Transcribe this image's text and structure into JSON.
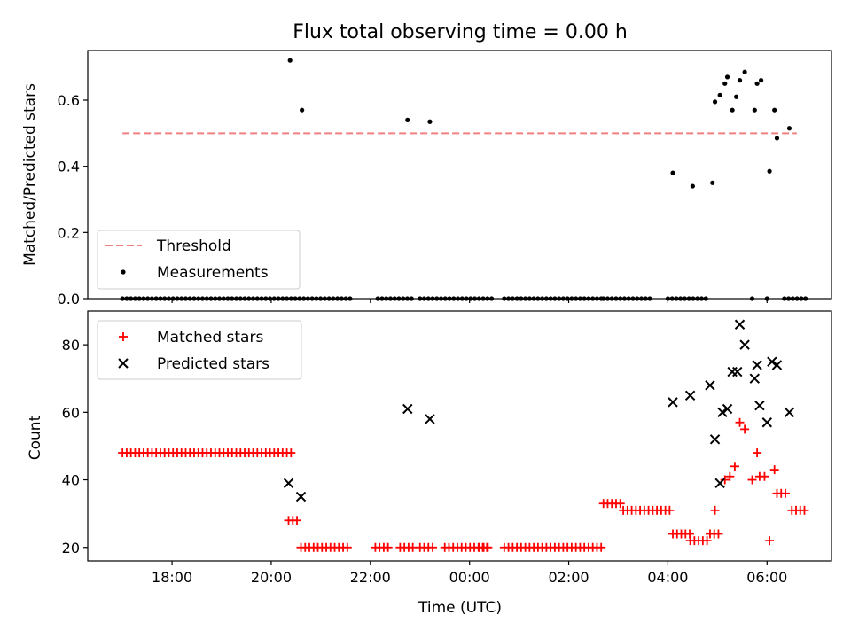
{
  "chart_data": [
    {
      "type": "scatter",
      "title": "Flux total observing time = 0.00 h",
      "xlabel": "",
      "ylabel": "Matched/Predicted stars",
      "ylim": [
        0,
        0.75
      ],
      "yticks": [
        0.0,
        0.2,
        0.4,
        0.6
      ],
      "ytick_labels": [
        "0.0",
        "0.2",
        "0.4",
        "0.6"
      ],
      "xlim_hours": [
        16.3,
        31.3
      ],
      "legend": {
        "position": "lower-left",
        "entries": [
          "Threshold",
          "Measurements"
        ]
      },
      "threshold": {
        "name": "Threshold",
        "value": 0.5,
        "x_range_hours": [
          17.0,
          30.6
        ],
        "color": "#f08080"
      },
      "series": [
        {
          "name": "Measurements",
          "color": "#000000",
          "points_hours": [
            [
              20.38,
              0.72
            ],
            [
              20.62,
              0.57
            ],
            [
              22.75,
              0.54
            ],
            [
              23.2,
              0.535
            ],
            [
              28.1,
              0.38
            ],
            [
              28.5,
              0.34
            ],
            [
              28.9,
              0.35
            ],
            [
              28.95,
              0.595
            ],
            [
              29.05,
              0.615
            ],
            [
              29.15,
              0.65
            ],
            [
              29.2,
              0.67
            ],
            [
              29.3,
              0.57
            ],
            [
              29.38,
              0.61
            ],
            [
              29.45,
              0.66
            ],
            [
              29.55,
              0.685
            ],
            [
              29.75,
              0.57
            ],
            [
              29.8,
              0.65
            ],
            [
              29.88,
              0.66
            ],
            [
              30.05,
              0.385
            ],
            [
              30.15,
              0.57
            ],
            [
              30.2,
              0.485
            ],
            [
              30.45,
              0.515
            ]
          ],
          "zero_ranges_hours": [
            [
              17.0,
              21.6
            ],
            [
              22.15,
              22.9
            ],
            [
              23.0,
              24.5
            ],
            [
              24.7,
              26.7
            ],
            [
              26.7,
              27.7
            ],
            [
              28.0,
              28.8
            ],
            [
              29.7,
              29.75
            ],
            [
              30.0,
              30.0
            ],
            [
              30.35,
              30.8
            ]
          ]
        }
      ]
    },
    {
      "type": "scatter",
      "title": "",
      "xlabel": "Time (UTC)",
      "ylabel": "Count",
      "ylim": [
        16,
        90
      ],
      "yticks": [
        20,
        40,
        60,
        80
      ],
      "ytick_labels": [
        "20",
        "40",
        "60",
        "80"
      ],
      "xlim_hours": [
        16.3,
        31.3
      ],
      "xticks_hours": [
        18,
        20,
        22,
        24,
        26,
        28,
        30
      ],
      "xtick_labels": [
        "18:00",
        "20:00",
        "22:00",
        "00:00",
        "02:00",
        "04:00",
        "06:00"
      ],
      "legend": {
        "position": "top-left",
        "entries": [
          "Matched stars",
          "Predicted stars"
        ]
      },
      "series": [
        {
          "name": "Matched stars",
          "color": "#ff0000",
          "marker": "+",
          "runs_hours": [
            {
              "from": 17.0,
              "to": 20.4,
              "value": 48
            },
            {
              "from": 20.35,
              "to": 20.55,
              "value": 28
            },
            {
              "from": 20.6,
              "to": 21.6,
              "value": 20
            },
            {
              "from": 22.1,
              "to": 22.4,
              "value": 20
            },
            {
              "from": 22.6,
              "to": 22.9,
              "value": 20
            },
            {
              "from": 23.0,
              "to": 23.3,
              "value": 20
            },
            {
              "from": 23.5,
              "to": 24.4,
              "value": 20
            },
            {
              "from": 24.2,
              "to": 24.4,
              "value": 20
            },
            {
              "from": 24.7,
              "to": 26.7,
              "value": 20
            },
            {
              "from": 26.7,
              "to": 27.1,
              "value": 33
            },
            {
              "from": 27.1,
              "to": 28.1,
              "value": 31
            },
            {
              "from": 28.1,
              "to": 28.45,
              "value": 24
            },
            {
              "from": 28.45,
              "to": 28.85,
              "value": 22
            },
            {
              "from": 28.85,
              "to": 29.05,
              "value": 24
            },
            {
              "from": 30.2,
              "to": 30.4,
              "value": 36
            },
            {
              "from": 30.5,
              "to": 30.8,
              "value": 31
            }
          ],
          "points_hours": [
            [
              28.95,
              31
            ],
            [
              29.15,
              40
            ],
            [
              29.25,
              41
            ],
            [
              29.35,
              44
            ],
            [
              29.45,
              57
            ],
            [
              29.55,
              55
            ],
            [
              29.7,
              40
            ],
            [
              29.8,
              48
            ],
            [
              29.85,
              41
            ],
            [
              29.95,
              41
            ],
            [
              30.05,
              22
            ],
            [
              30.15,
              43
            ]
          ]
        },
        {
          "name": "Predicted stars",
          "color": "#000000",
          "marker": "x",
          "points_hours": [
            [
              20.35,
              39
            ],
            [
              20.6,
              35
            ],
            [
              22.75,
              61
            ],
            [
              23.2,
              58
            ],
            [
              28.1,
              63
            ],
            [
              28.45,
              65
            ],
            [
              28.85,
              68
            ],
            [
              28.95,
              52
            ],
            [
              29.05,
              39
            ],
            [
              29.1,
              60
            ],
            [
              29.2,
              61
            ],
            [
              29.3,
              72
            ],
            [
              29.4,
              72
            ],
            [
              29.45,
              86
            ],
            [
              29.55,
              80
            ],
            [
              29.75,
              70
            ],
            [
              29.8,
              74
            ],
            [
              29.85,
              62
            ],
            [
              30.0,
              57
            ],
            [
              30.1,
              75
            ],
            [
              30.2,
              74
            ],
            [
              30.45,
              60
            ]
          ]
        }
      ]
    }
  ]
}
